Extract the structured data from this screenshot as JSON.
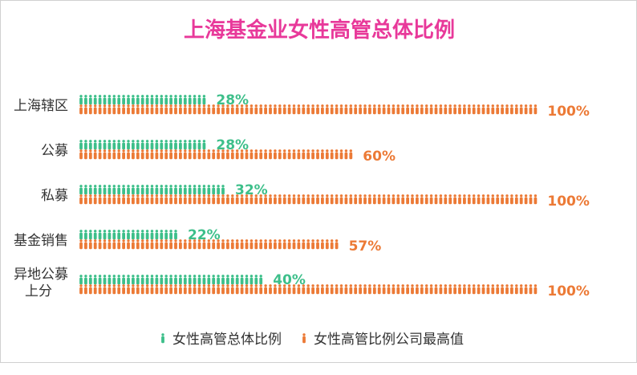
{
  "chart_data": {
    "type": "bar",
    "title": "上海基金业女性高管总体比例",
    "categories": [
      "上海辖区",
      "公募",
      "私募",
      "基金销售",
      "异地公募上分"
    ],
    "category_lines": [
      [
        "上海辖区"
      ],
      [
        "公募"
      ],
      [
        "私募"
      ],
      [
        "基金销售"
      ],
      [
        "异地公募",
        "上分"
      ]
    ],
    "series": [
      {
        "name": "女性高管总体比例",
        "values": [
          28,
          28,
          32,
          22,
          40
        ],
        "labels": [
          "28%",
          "28%",
          "32%",
          "22%",
          "40%"
        ]
      },
      {
        "name": "女性高管比例公司最高值",
        "values": [
          100,
          60,
          100,
          57,
          100
        ],
        "labels": [
          "100%",
          "60%",
          "100%",
          "57%",
          "100%"
        ]
      }
    ],
    "xlim": [
      0,
      100
    ],
    "legend_position": "bottom",
    "colors": {
      "title": "#e8399a",
      "female_overall": "#3dbf8a",
      "female_max": "#ec7a36"
    },
    "icon": "person-icon"
  }
}
